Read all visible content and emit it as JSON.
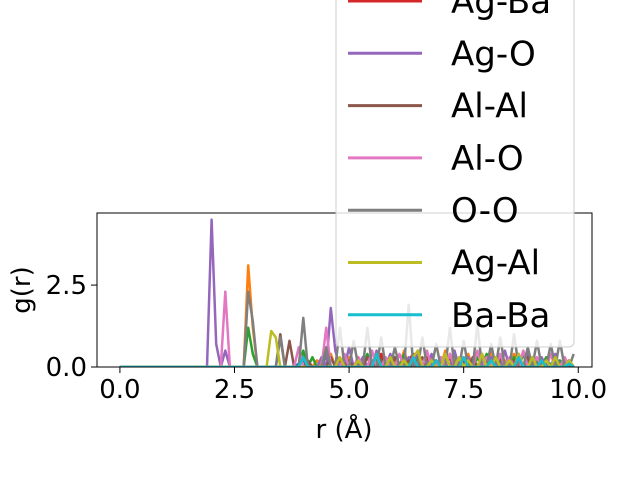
{
  "chart_data": {
    "type": "line",
    "xlabel": "r (Å)",
    "ylabel": "g(r)",
    "xlim": [
      -0.5,
      10.3
    ],
    "ylim": [
      0,
      4.7
    ],
    "x_ticks": [
      0.0,
      2.5,
      5.0,
      7.5,
      10.0
    ],
    "x_tick_labels": [
      "0.0",
      "2.5",
      "5.0",
      "7.5",
      "10.0"
    ],
    "y_ticks": [
      0.0,
      2.5
    ],
    "y_tick_labels": [
      "0.0",
      "2.5"
    ],
    "grid": false,
    "legend_position": "upper right",
    "x": [
      0.0,
      0.2,
      0.4,
      0.6,
      0.8,
      1.0,
      1.2,
      1.4,
      1.6,
      1.8,
      1.9,
      2.0,
      2.1,
      2.2,
      2.3,
      2.4,
      2.5,
      2.6,
      2.7,
      2.8,
      2.9,
      3.0,
      3.1,
      3.2,
      3.3,
      3.4,
      3.5,
      3.6,
      3.7,
      3.8,
      3.9,
      4.0,
      4.1,
      4.2,
      4.3,
      4.4,
      4.5,
      4.6,
      4.7,
      4.8,
      4.9,
      5.0,
      5.1,
      5.2,
      5.3,
      5.4,
      5.5,
      5.6,
      5.7,
      5.8,
      5.9,
      6.0,
      6.1,
      6.2,
      6.3,
      6.4,
      6.5,
      6.6,
      6.7,
      6.8,
      6.9,
      7.0,
      7.1,
      7.2,
      7.3,
      7.4,
      7.5,
      7.6,
      7.7,
      7.8,
      7.9,
      8.0,
      8.1,
      8.2,
      8.3,
      8.4,
      8.5,
      8.6,
      8.7,
      8.8,
      8.9,
      9.0,
      9.1,
      9.2,
      9.3,
      9.4,
      9.5,
      9.6,
      9.7,
      9.8,
      9.9
    ],
    "series": [
      {
        "name": "",
        "color": "#1f77b4",
        "values": [
          0,
          0,
          0,
          0,
          0,
          0,
          0,
          0,
          0,
          0,
          0,
          0,
          0,
          0,
          0,
          0,
          0,
          0,
          0,
          0,
          0,
          0,
          0,
          0,
          0,
          0,
          0,
          0,
          0,
          0,
          0.1,
          0.2,
          0,
          0,
          0,
          0.1,
          0,
          0,
          0,
          0,
          0.1,
          0,
          0,
          0,
          0.1,
          0,
          0,
          0.2,
          0,
          0,
          0,
          0,
          0.1,
          0,
          0.2,
          0,
          0,
          0.1,
          0,
          0,
          0.2,
          0,
          0,
          0.1,
          0,
          0,
          0.1,
          0,
          0.2,
          0,
          0,
          0.1,
          0,
          0,
          0.2,
          0,
          0,
          0.1,
          0,
          0,
          0.2,
          0,
          0.1,
          0,
          0,
          0.1,
          0,
          0,
          0.2,
          0,
          0
        ]
      },
      {
        "name": "",
        "color": "#ff7f0e",
        "values": [
          0,
          0,
          0,
          0,
          0,
          0,
          0,
          0,
          0,
          0,
          0,
          0,
          0,
          0,
          0,
          0,
          0,
          0,
          0,
          3.1,
          1.2,
          0,
          0,
          0,
          0,
          0,
          0,
          0,
          0,
          0,
          0,
          0,
          0,
          0,
          0.2,
          0,
          0,
          0.4,
          0,
          0,
          0,
          0.3,
          0,
          0,
          0.2,
          0,
          0,
          0.1,
          0.3,
          0,
          0,
          0.2,
          0,
          0.5,
          0,
          0,
          0.4,
          0,
          0,
          0.3,
          0,
          0,
          0.5,
          0,
          0.2,
          0,
          0,
          0.4,
          0,
          0.3,
          0,
          0,
          0.5,
          0,
          0,
          0.2,
          0,
          0.4,
          0,
          0,
          0.3,
          0,
          0,
          0.2,
          0,
          0.4,
          0,
          0,
          0.3,
          0,
          0
        ]
      },
      {
        "name": "",
        "color": "#2ca02c",
        "values": [
          0,
          0,
          0,
          0,
          0,
          0,
          0,
          0,
          0,
          0,
          0,
          0,
          0,
          0,
          0,
          0,
          0,
          0,
          0,
          1.2,
          0.4,
          0,
          0,
          0,
          0,
          0,
          0,
          0,
          0,
          0,
          0,
          0.5,
          0,
          0.3,
          0,
          0,
          0.4,
          0,
          0,
          0,
          0.3,
          0,
          0,
          0.2,
          0,
          0.4,
          0,
          0,
          0.3,
          0,
          0.2,
          0,
          0,
          0.4,
          0,
          0,
          0.3,
          0,
          0.2,
          0,
          0,
          0.3,
          0,
          0,
          0.4,
          0,
          0.2,
          0,
          0,
          0.3,
          0,
          0.4,
          0,
          0,
          0.2,
          0,
          0,
          0.3,
          0,
          0.4,
          0,
          0,
          0.2,
          0,
          0.3,
          0,
          0,
          0.2,
          0,
          0,
          0
        ]
      },
      {
        "name": "Ag-Ba",
        "color": "#d62728",
        "values": [
          0,
          0,
          0,
          0,
          0,
          0,
          0,
          0,
          0,
          0,
          0,
          0,
          0,
          0,
          0,
          0,
          0,
          0,
          0,
          0,
          0,
          0,
          0,
          0,
          0,
          0,
          0,
          0,
          0,
          0,
          0,
          0,
          0,
          0,
          0,
          0,
          0,
          0,
          0,
          0.2,
          0,
          0,
          0,
          0.3,
          0,
          0,
          0.2,
          0,
          0.4,
          0,
          0,
          0.3,
          0,
          0,
          0.2,
          0.4,
          0,
          0,
          0.3,
          0,
          0.2,
          0,
          0,
          0.4,
          0,
          0,
          0.3,
          0,
          0.2,
          0,
          0.4,
          0,
          0,
          0.3,
          0,
          0,
          0.2,
          0,
          0.4,
          0,
          0,
          0.3,
          0,
          0,
          0.2,
          0,
          0.3,
          0,
          0,
          0.2,
          0
        ]
      },
      {
        "name": "Ag-O",
        "color": "#9467bd",
        "values": [
          0,
          0,
          0,
          0,
          0,
          0,
          0,
          0,
          0,
          0,
          0,
          4.5,
          0.7,
          0,
          0.5,
          0,
          0,
          0,
          0,
          0,
          0,
          0,
          0,
          0,
          0,
          0,
          0,
          0,
          0,
          0,
          0,
          0,
          0,
          0,
          0,
          0.3,
          0,
          1.8,
          0.5,
          0,
          0,
          0.6,
          0,
          0,
          0.3,
          0,
          0,
          0.5,
          0,
          0,
          0.4,
          0,
          0,
          0,
          0.3,
          0,
          0.5,
          0,
          0,
          0.4,
          0,
          0,
          0.3,
          0,
          0.5,
          0,
          0,
          0.3,
          0,
          0,
          0.4,
          0,
          0.3,
          0,
          0,
          0.5,
          0,
          0,
          0.3,
          0,
          0.4,
          0,
          0,
          0.3,
          0,
          0,
          0.4,
          0,
          0.3,
          0,
          0
        ]
      },
      {
        "name": "Al-Al",
        "color": "#8c564b",
        "values": [
          0,
          0,
          0,
          0,
          0,
          0,
          0,
          0,
          0,
          0,
          0,
          0,
          0,
          0,
          0,
          0,
          0,
          0,
          0,
          0,
          0,
          0,
          0,
          0,
          0,
          0,
          1.0,
          0,
          0.8,
          0,
          0,
          0,
          0.2,
          0,
          0,
          0,
          0,
          0.3,
          0,
          0,
          0,
          0.2,
          0,
          0,
          0,
          0.3,
          0,
          0,
          0.2,
          0,
          0,
          0.3,
          0,
          0,
          0.2,
          0,
          0,
          0.3,
          0,
          0,
          0.2,
          0,
          0,
          0.3,
          0,
          0,
          0.2,
          0,
          0.3,
          0,
          0,
          0.2,
          0,
          0,
          0.3,
          0,
          0,
          0.2,
          0,
          0,
          0.3,
          0,
          0,
          0.2,
          0,
          0,
          0.3,
          0,
          0,
          0.2,
          0
        ]
      },
      {
        "name": "Al-O",
        "color": "#e377c2",
        "values": [
          0,
          0,
          0,
          0,
          0,
          0,
          0,
          0,
          0,
          0,
          0,
          0,
          0,
          0,
          2.3,
          0,
          0,
          0,
          0,
          0,
          0,
          0,
          0,
          0,
          0,
          0,
          0,
          0,
          0,
          0,
          0.6,
          0,
          0,
          0,
          0,
          0,
          1.2,
          0,
          0,
          0,
          0.4,
          0,
          0,
          0.3,
          0,
          0,
          0.5,
          0,
          0,
          0.3,
          0,
          0,
          0.4,
          0,
          0,
          0.3,
          0,
          0,
          0.5,
          0,
          0,
          0.3,
          0,
          0.4,
          0,
          0,
          0.3,
          0,
          0,
          0.5,
          0,
          0.3,
          0,
          0,
          0.4,
          0,
          0.3,
          0,
          0,
          0.5,
          0,
          0,
          0.3,
          0,
          0,
          0.4,
          0,
          0,
          0.3,
          0,
          0
        ]
      },
      {
        "name": "O-O",
        "color": "#7f7f7f",
        "values": [
          0,
          0,
          0,
          0,
          0,
          0,
          0,
          0,
          0,
          0,
          0,
          0,
          0,
          0,
          0,
          0,
          0,
          0,
          0,
          2.3,
          1.4,
          0,
          0,
          0,
          0,
          0,
          0.9,
          0,
          0,
          0,
          0,
          1.5,
          0,
          0,
          0,
          0,
          0.6,
          0,
          0,
          1.2,
          0,
          0,
          0.8,
          0,
          0,
          1.2,
          0,
          0,
          0.9,
          0,
          0,
          0.6,
          0,
          0,
          1.9,
          0,
          0,
          0.9,
          0,
          0,
          0.7,
          0,
          0,
          1.2,
          0,
          0,
          0.8,
          0,
          0,
          1.3,
          0,
          0,
          0.7,
          0,
          0.9,
          0,
          0,
          1.0,
          0,
          0,
          0.6,
          0,
          0.8,
          0,
          0,
          0.7,
          0,
          0.8,
          0,
          0,
          0.4
        ]
      },
      {
        "name": "Ag-Al",
        "color": "#bcbd22",
        "values": [
          0,
          0,
          0,
          0,
          0,
          0,
          0,
          0,
          0,
          0,
          0,
          0,
          0,
          0,
          0,
          0,
          0,
          0,
          0,
          0,
          0,
          0,
          0,
          0,
          1.1,
          0.9,
          0,
          0,
          0,
          0,
          0,
          0,
          0,
          0,
          0,
          0,
          0,
          0,
          0,
          0.3,
          0,
          0,
          0,
          0.2,
          0,
          0,
          0,
          0.4,
          0,
          0,
          0.3,
          0,
          0,
          0.2,
          0,
          0.3,
          0.5,
          0,
          0,
          0.2,
          0,
          0,
          0.4,
          0,
          0,
          0.3,
          0,
          0.2,
          0,
          0,
          0.4,
          0,
          0,
          0.3,
          0,
          0,
          0.2,
          0,
          0.4,
          0,
          0,
          0.3,
          0,
          0,
          0.2,
          0,
          0.3,
          0,
          0,
          0.2,
          0
        ]
      },
      {
        "name": "Ba-Ba",
        "color": "#17becf",
        "values": [
          0,
          0,
          0,
          0,
          0,
          0,
          0,
          0,
          0,
          0,
          0,
          0,
          0,
          0,
          0,
          0,
          0,
          0,
          0,
          0,
          0,
          0,
          0,
          0,
          0,
          0,
          0,
          0,
          0,
          0,
          0,
          0.3,
          0,
          0,
          0,
          0,
          0,
          0,
          0,
          0,
          0,
          0,
          0,
          0,
          0,
          0,
          0,
          0.4,
          0,
          0,
          0,
          0,
          0,
          0,
          0,
          0.3,
          0,
          0,
          0,
          0,
          0.2,
          0,
          0,
          0,
          0,
          0,
          0.3,
          0,
          0,
          0,
          0,
          0,
          0.2,
          0,
          0,
          0,
          0,
          0,
          0.3,
          0,
          0,
          0,
          0,
          0.2,
          0,
          0,
          0,
          0,
          0,
          0.1,
          0
        ]
      }
    ]
  }
}
